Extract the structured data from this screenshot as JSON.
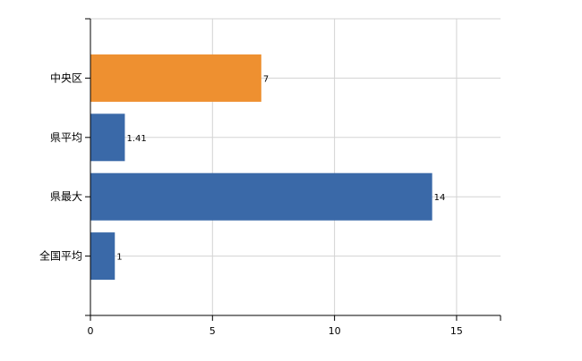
{
  "colors": {
    "highlight": "#EE9030",
    "default": "#3A69A8",
    "grid": "#D3D3D3",
    "axis": "#000000"
  },
  "chart_data": {
    "type": "bar",
    "orientation": "horizontal",
    "categories": [
      "中央区",
      "県平均",
      "県最大",
      "全国平均"
    ],
    "values": [
      7,
      1.41,
      14,
      1
    ],
    "value_labels": [
      "7",
      "1.41",
      "14",
      "1"
    ],
    "bar_colors": [
      "#EE9030",
      "#3A69A8",
      "#3A69A8",
      "#3A69A8"
    ],
    "xlim": [
      0,
      16.8
    ],
    "x_ticks": [
      0,
      5,
      10,
      15
    ],
    "x_tick_labels": [
      "0",
      "5",
      "10",
      "15"
    ],
    "title": "",
    "xlabel": "",
    "ylabel": "",
    "grid": true,
    "legend": "none"
  }
}
